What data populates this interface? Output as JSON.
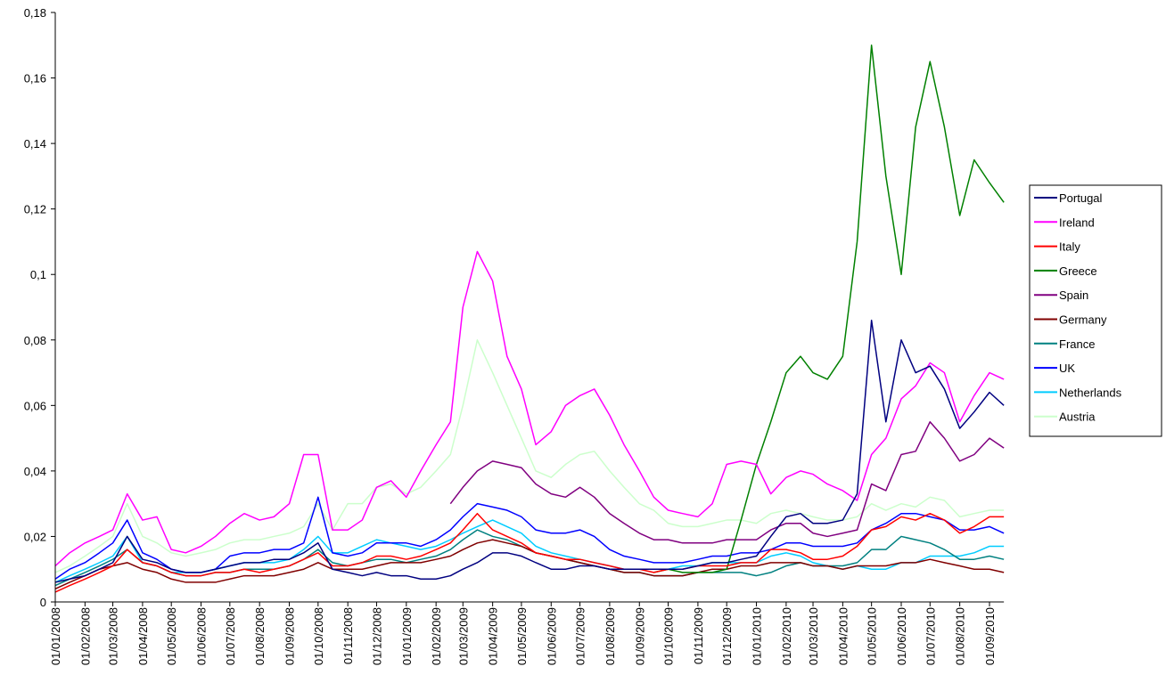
{
  "chart_data": {
    "type": "line",
    "x": [
      "01/01/2008",
      "16/01/2008",
      "01/02/2008",
      "16/02/2008",
      "01/03/2008",
      "16/03/2008",
      "01/04/2008",
      "16/04/2008",
      "01/05/2008",
      "16/05/2008",
      "01/06/2008",
      "16/06/2008",
      "01/07/2008",
      "16/07/2008",
      "01/08/2008",
      "16/08/2008",
      "01/09/2008",
      "16/09/2008",
      "01/10/2008",
      "16/10/2008",
      "01/11/2008",
      "16/11/2008",
      "01/12/2008",
      "16/12/2008",
      "01/01/2009",
      "16/01/2009",
      "01/02/2009",
      "16/02/2009",
      "01/03/2009",
      "16/03/2009",
      "01/04/2009",
      "16/04/2009",
      "01/05/2009",
      "16/05/2009",
      "01/06/2009",
      "16/06/2009",
      "01/07/2009",
      "16/07/2009",
      "01/08/2009",
      "16/08/2009",
      "01/09/2009",
      "16/09/2009",
      "01/10/2009",
      "16/10/2009",
      "01/11/2009",
      "16/11/2009",
      "01/12/2009",
      "16/12/2009",
      "01/01/2010",
      "16/01/2010",
      "01/02/2010",
      "16/02/2010",
      "01/03/2010",
      "16/03/2010",
      "01/04/2010",
      "16/04/2010",
      "01/05/2010",
      "16/05/2010",
      "01/06/2010",
      "16/06/2010",
      "01/07/2010",
      "16/07/2010",
      "01/08/2010",
      "16/08/2010",
      "01/09/2010",
      "16/09/2010"
    ],
    "xlim": [
      "01/01/2008",
      "16/09/2010"
    ],
    "xticks": [
      "01/01/2008",
      "01/02/2008",
      "01/03/2008",
      "01/04/2008",
      "01/05/2008",
      "01/06/2008",
      "01/07/2008",
      "01/08/2008",
      "01/09/2008",
      "01/10/2008",
      "01/11/2008",
      "01/12/2008",
      "01/01/2009",
      "01/02/2009",
      "01/03/2009",
      "01/04/2009",
      "01/05/2009",
      "01/06/2009",
      "01/07/2009",
      "01/08/2009",
      "01/09/2009",
      "01/10/2009",
      "01/11/2009",
      "01/12/2009",
      "01/01/2010",
      "01/02/2010",
      "01/03/2010",
      "01/04/2010",
      "01/05/2010",
      "01/06/2010",
      "01/07/2010",
      "01/08/2010",
      "01/09/2010"
    ],
    "ylim": [
      0,
      0.18
    ],
    "yticks": [
      0,
      {
        "value": 0.02,
        "label": "0,02"
      },
      {
        "value": 0.04,
        "label": "0,04"
      },
      {
        "value": 0.06,
        "label": "0,06"
      },
      {
        "value": 0.08,
        "label": "0,08"
      },
      {
        "value": 0.1,
        "label": "0,1"
      },
      {
        "value": 0.12,
        "label": "0,12"
      },
      {
        "value": 0.14,
        "label": "0,14"
      },
      {
        "value": 0.16,
        "label": "0,16"
      },
      {
        "value": 0.18,
        "label": "0,18"
      }
    ],
    "grid": false,
    "legend": "right",
    "series": [
      {
        "name": "Portugal",
        "color": "#000080",
        "values": [
          0.006,
          0.007,
          0.008,
          0.01,
          0.012,
          0.02,
          0.013,
          0.012,
          0.01,
          0.009,
          0.009,
          0.01,
          0.011,
          0.012,
          0.012,
          0.013,
          0.013,
          0.015,
          0.018,
          0.01,
          0.009,
          0.008,
          0.009,
          0.008,
          0.008,
          0.007,
          0.007,
          0.008,
          0.01,
          0.012,
          0.015,
          0.015,
          0.014,
          0.012,
          0.01,
          0.01,
          0.011,
          0.011,
          0.01,
          0.01,
          0.01,
          0.01,
          0.01,
          0.01,
          0.011,
          0.012,
          0.012,
          0.013,
          0.014,
          0.02,
          0.026,
          0.027,
          0.024,
          0.024,
          0.025,
          0.033,
          0.086,
          0.055,
          0.08,
          0.07,
          0.072,
          0.065,
          0.053,
          0.058,
          0.064,
          0.06
        ]
      },
      {
        "name": "Ireland",
        "color": "#ff00ff",
        "values": [
          0.011,
          0.015,
          0.018,
          0.02,
          0.022,
          0.033,
          0.025,
          0.026,
          0.016,
          0.015,
          0.017,
          0.02,
          0.024,
          0.027,
          0.025,
          0.026,
          0.03,
          0.045,
          0.045,
          0.022,
          0.022,
          0.025,
          0.035,
          0.037,
          0.032,
          0.04,
          0.048,
          0.055,
          0.09,
          0.107,
          0.098,
          0.075,
          0.065,
          0.048,
          0.052,
          0.06,
          0.063,
          0.065,
          0.057,
          0.048,
          0.04,
          0.032,
          0.028,
          0.027,
          0.026,
          0.03,
          0.042,
          0.043,
          0.042,
          0.033,
          0.038,
          0.04,
          0.039,
          0.036,
          0.034,
          0.031,
          0.045,
          0.05,
          0.062,
          0.066,
          0.073,
          0.07,
          0.055,
          0.063,
          0.07,
          0.068
        ]
      },
      {
        "name": "Italy",
        "color": "#ff0000",
        "values": [
          0.003,
          0.005,
          0.007,
          0.009,
          0.011,
          0.016,
          0.012,
          0.011,
          0.009,
          0.008,
          0.008,
          0.009,
          0.009,
          0.01,
          0.009,
          0.01,
          0.011,
          0.013,
          0.015,
          0.011,
          0.011,
          0.012,
          0.014,
          0.014,
          0.013,
          0.014,
          0.016,
          0.018,
          0.022,
          0.027,
          0.022,
          0.02,
          0.018,
          0.015,
          0.014,
          0.013,
          0.013,
          0.012,
          0.011,
          0.01,
          0.01,
          0.009,
          0.01,
          0.01,
          0.011,
          0.011,
          0.011,
          0.012,
          0.012,
          0.016,
          0.016,
          0.015,
          0.013,
          0.013,
          0.014,
          0.017,
          0.022,
          0.023,
          0.026,
          0.025,
          0.027,
          0.025,
          0.021,
          0.023,
          0.026,
          0.026
        ]
      },
      {
        "name": "Greece",
        "color": "#008000",
        "values": [
          null,
          null,
          null,
          null,
          null,
          null,
          null,
          null,
          null,
          null,
          null,
          null,
          null,
          null,
          null,
          null,
          null,
          null,
          null,
          null,
          null,
          null,
          null,
          null,
          null,
          null,
          null,
          null,
          null,
          null,
          null,
          null,
          null,
          null,
          null,
          null,
          null,
          null,
          null,
          null,
          null,
          0.009,
          0.01,
          0.009,
          0.009,
          0.009,
          0.01,
          0.025,
          0.042,
          0.055,
          0.07,
          0.075,
          0.07,
          0.068,
          0.075,
          0.11,
          0.17,
          0.13,
          0.1,
          0.145,
          0.165,
          0.145,
          0.118,
          0.135,
          0.128,
          0.122
        ]
      },
      {
        "name": "Spain",
        "color": "#800080",
        "values": [
          null,
          null,
          null,
          null,
          null,
          null,
          null,
          null,
          null,
          null,
          null,
          null,
          null,
          null,
          null,
          null,
          null,
          null,
          null,
          null,
          null,
          null,
          null,
          null,
          null,
          null,
          null,
          0.03,
          0.035,
          0.04,
          0.043,
          0.042,
          0.041,
          0.036,
          0.033,
          0.032,
          0.035,
          0.032,
          0.027,
          0.024,
          0.021,
          0.019,
          0.019,
          0.018,
          0.018,
          0.018,
          0.019,
          0.019,
          0.019,
          0.022,
          0.024,
          0.024,
          0.021,
          0.02,
          0.021,
          0.022,
          0.036,
          0.034,
          0.045,
          0.046,
          0.055,
          0.05,
          0.043,
          0.045,
          0.05,
          0.047
        ]
      },
      {
        "name": "Germany",
        "color": "#800000",
        "values": [
          0.004,
          0.006,
          0.008,
          0.01,
          0.011,
          0.012,
          0.01,
          0.009,
          0.007,
          0.006,
          0.006,
          0.006,
          0.007,
          0.008,
          0.008,
          0.008,
          0.009,
          0.01,
          0.012,
          0.01,
          0.01,
          0.01,
          0.011,
          0.012,
          0.012,
          0.012,
          0.013,
          0.014,
          0.016,
          0.018,
          0.019,
          0.018,
          0.017,
          0.015,
          0.014,
          0.013,
          0.012,
          0.011,
          0.01,
          0.009,
          0.009,
          0.008,
          0.008,
          0.008,
          0.009,
          0.01,
          0.01,
          0.011,
          0.011,
          0.012,
          0.012,
          0.012,
          0.011,
          0.011,
          0.01,
          0.011,
          0.011,
          0.011,
          0.012,
          0.012,
          0.013,
          0.012,
          0.011,
          0.01,
          0.01,
          0.009
        ]
      },
      {
        "name": "France",
        "color": "#008080",
        "values": [
          0.005,
          0.007,
          0.009,
          0.011,
          0.013,
          0.016,
          0.012,
          0.011,
          0.009,
          0.008,
          0.008,
          0.009,
          0.009,
          0.01,
          0.01,
          0.01,
          0.011,
          0.013,
          0.016,
          0.012,
          0.011,
          0.012,
          0.013,
          0.013,
          0.012,
          0.013,
          0.014,
          0.016,
          0.019,
          0.022,
          0.02,
          0.019,
          0.017,
          0.015,
          0.014,
          0.013,
          0.012,
          0.011,
          0.01,
          0.009,
          0.009,
          0.008,
          0.008,
          0.008,
          0.009,
          0.009,
          0.009,
          0.009,
          0.008,
          0.009,
          0.011,
          0.012,
          0.011,
          0.011,
          0.011,
          0.012,
          0.016,
          0.016,
          0.02,
          0.019,
          0.018,
          0.016,
          0.013,
          0.013,
          0.014,
          0.013
        ]
      },
      {
        "name": "UK",
        "color": "#0000ff",
        "values": [
          0.007,
          0.01,
          0.012,
          0.015,
          0.018,
          0.025,
          0.015,
          0.013,
          0.01,
          0.009,
          0.009,
          0.01,
          0.014,
          0.015,
          0.015,
          0.016,
          0.016,
          0.018,
          0.032,
          0.015,
          0.014,
          0.015,
          0.018,
          0.018,
          0.018,
          0.017,
          0.019,
          0.022,
          0.026,
          0.03,
          0.029,
          0.028,
          0.026,
          0.022,
          0.021,
          0.021,
          0.022,
          0.02,
          0.016,
          0.014,
          0.013,
          0.012,
          0.012,
          0.012,
          0.013,
          0.014,
          0.014,
          0.015,
          0.015,
          0.016,
          0.018,
          0.018,
          0.017,
          0.017,
          0.017,
          0.018,
          0.022,
          0.024,
          0.027,
          0.027,
          0.026,
          0.025,
          0.022,
          0.022,
          0.023,
          0.021
        ]
      },
      {
        "name": "Netherlands",
        "color": "#00ccff",
        "values": [
          0.006,
          0.008,
          0.01,
          0.012,
          0.014,
          0.02,
          0.012,
          0.011,
          0.009,
          0.009,
          0.009,
          0.01,
          0.011,
          0.012,
          0.012,
          0.012,
          0.013,
          0.016,
          0.02,
          0.015,
          0.015,
          0.017,
          0.019,
          0.018,
          0.017,
          0.016,
          0.017,
          0.019,
          0.021,
          0.023,
          0.025,
          0.023,
          0.021,
          0.017,
          0.015,
          0.014,
          0.013,
          0.012,
          0.011,
          0.01,
          0.01,
          0.01,
          0.01,
          0.011,
          0.011,
          0.012,
          0.012,
          0.012,
          0.012,
          0.014,
          0.015,
          0.014,
          0.012,
          0.011,
          0.01,
          0.011,
          0.01,
          0.01,
          0.012,
          0.012,
          0.014,
          0.014,
          0.014,
          0.015,
          0.017,
          0.017
        ]
      },
      {
        "name": "Austria",
        "color": "#ccffcc",
        "values": [
          0.009,
          0.011,
          0.014,
          0.017,
          0.02,
          0.03,
          0.02,
          0.018,
          0.015,
          0.014,
          0.015,
          0.016,
          0.018,
          0.019,
          0.019,
          0.02,
          0.021,
          0.023,
          0.03,
          0.022,
          0.03,
          0.03,
          0.035,
          0.036,
          0.033,
          0.035,
          0.04,
          0.045,
          0.06,
          0.08,
          0.07,
          0.06,
          0.05,
          0.04,
          0.038,
          0.042,
          0.045,
          0.046,
          0.04,
          0.035,
          0.03,
          0.028,
          0.024,
          0.023,
          0.023,
          0.024,
          0.025,
          0.025,
          0.024,
          0.027,
          0.028,
          0.027,
          0.026,
          0.025,
          0.025,
          0.026,
          0.03,
          0.028,
          0.03,
          0.029,
          0.032,
          0.031,
          0.026,
          0.027,
          0.028,
          0.028
        ]
      }
    ]
  }
}
